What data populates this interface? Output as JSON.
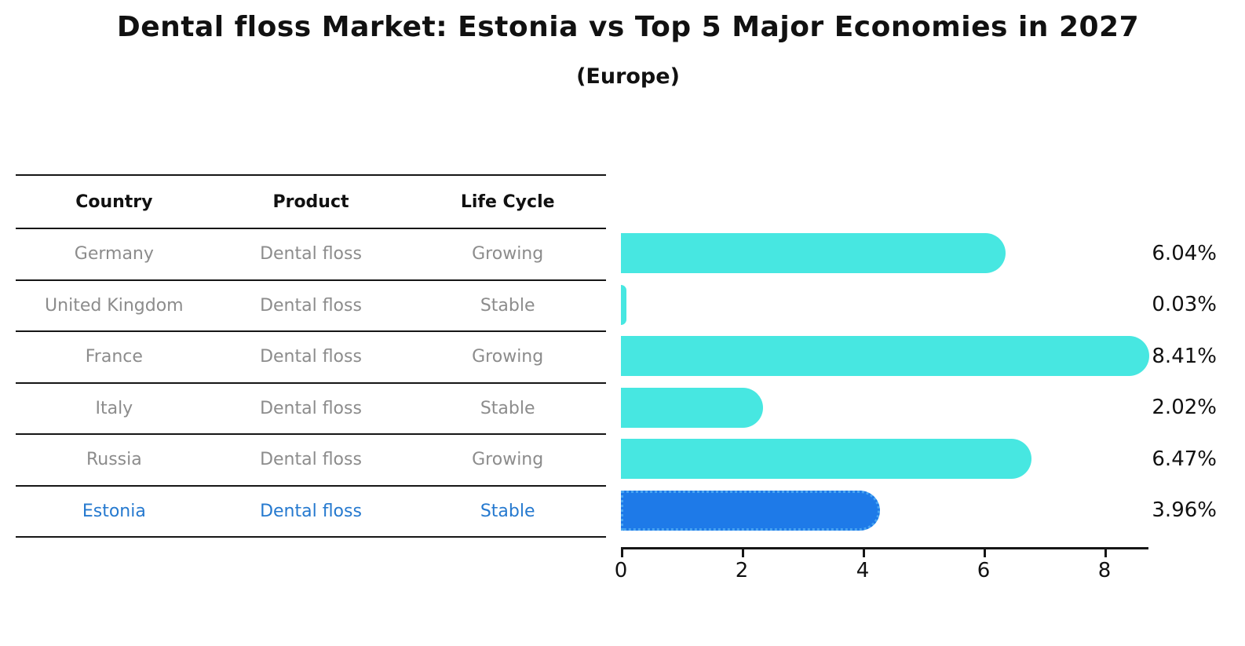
{
  "title": "Dental floss Market: Estonia vs Top 5 Major Economies in 2027",
  "subtitle": "(Europe)",
  "table": {
    "headers": [
      "Country",
      "Product",
      "Life Cycle"
    ],
    "rows": [
      {
        "country": "Germany",
        "product": "Dental floss",
        "life_cycle": "Growing",
        "highlight": false
      },
      {
        "country": "United Kingdom",
        "product": "Dental floss",
        "life_cycle": "Stable",
        "highlight": false
      },
      {
        "country": "France",
        "product": "Dental floss",
        "life_cycle": "Growing",
        "highlight": false
      },
      {
        "country": "Italy",
        "product": "Dental floss",
        "life_cycle": "Stable",
        "highlight": false
      },
      {
        "country": "Russia",
        "product": "Dental floss",
        "life_cycle": "Growing",
        "highlight": false
      },
      {
        "country": "Estonia",
        "product": "Dental floss",
        "life_cycle": "Stable",
        "highlight": true
      }
    ]
  },
  "chart_data": {
    "type": "bar",
    "orientation": "horizontal",
    "categories": [
      "Germany",
      "United Kingdom",
      "France",
      "Italy",
      "Russia",
      "Estonia"
    ],
    "values": [
      6.04,
      0.03,
      8.41,
      2.02,
      6.47,
      3.96
    ],
    "value_labels": [
      "6.04%",
      "0.03%",
      "8.41%",
      "2.02%",
      "6.47%",
      "3.96%"
    ],
    "x_ticks": [
      0,
      2,
      4,
      6,
      8
    ],
    "xlim": [
      0,
      8.8
    ],
    "grid": false,
    "legend": false,
    "highlight_index": 5,
    "bar_color": "#47E7E1",
    "highlight_color": "#1E7AE8",
    "highlight_border_color": "#49A5F1",
    "axis_color": "#161616",
    "label_color": "#111111",
    "row_text_color": "#8c8c8c",
    "highlight_text_color": "#2579cf"
  }
}
